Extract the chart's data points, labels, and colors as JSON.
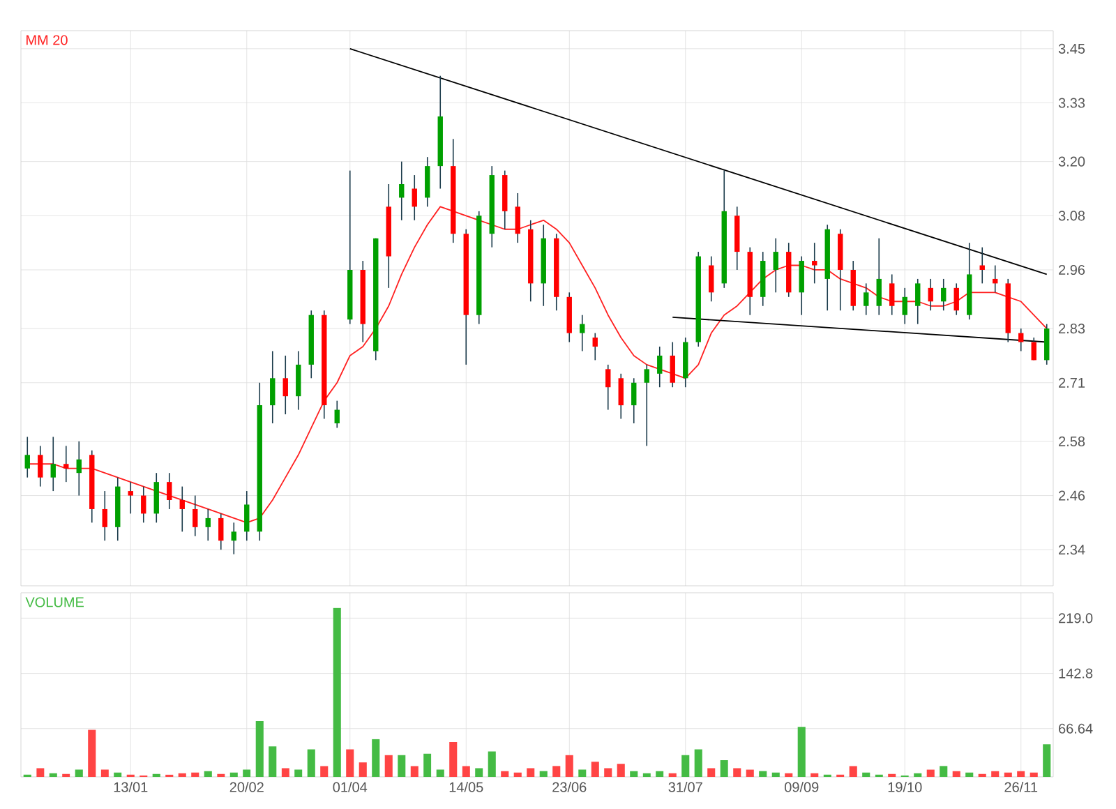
{
  "chart_data": [
    {
      "type": "candlestick",
      "categories": [
        null,
        null,
        null,
        null,
        null,
        null,
        null,
        null,
        null,
        null,
        null,
        null,
        null,
        null,
        null,
        null,
        null,
        null,
        null,
        null,
        null,
        null,
        null,
        null,
        null,
        null,
        null,
        null,
        null,
        null,
        null,
        null,
        null,
        null,
        null,
        null,
        null,
        null,
        null,
        null,
        null,
        null,
        null,
        null,
        null,
        null,
        null,
        null,
        null,
        null,
        null,
        null,
        null,
        null,
        null,
        null,
        null,
        null,
        null,
        null,
        null,
        null,
        null,
        null,
        null,
        null,
        null,
        null,
        null,
        null,
        null,
        null,
        null,
        null,
        null,
        null,
        null,
        null,
        null,
        null
      ],
      "ohlc": [
        [
          2.52,
          2.59,
          2.5,
          2.55
        ],
        [
          2.55,
          2.57,
          2.48,
          2.5
        ],
        [
          2.5,
          2.59,
          2.47,
          2.53
        ],
        [
          2.53,
          2.57,
          2.49,
          2.52
        ],
        [
          2.51,
          2.58,
          2.46,
          2.54
        ],
        [
          2.55,
          2.56,
          2.4,
          2.43
        ],
        [
          2.43,
          2.47,
          2.36,
          2.39
        ],
        [
          2.39,
          2.5,
          2.36,
          2.48
        ],
        [
          2.47,
          2.49,
          2.42,
          2.46
        ],
        [
          2.46,
          2.48,
          2.4,
          2.42
        ],
        [
          2.42,
          2.51,
          2.4,
          2.49
        ],
        [
          2.49,
          2.51,
          2.43,
          2.45
        ],
        [
          2.45,
          2.48,
          2.38,
          2.43
        ],
        [
          2.43,
          2.46,
          2.37,
          2.39
        ],
        [
          2.39,
          2.43,
          2.36,
          2.41
        ],
        [
          2.41,
          2.42,
          2.34,
          2.36
        ],
        [
          2.36,
          2.4,
          2.33,
          2.38
        ],
        [
          2.38,
          2.47,
          2.36,
          2.44
        ],
        [
          2.38,
          2.71,
          2.36,
          2.66
        ],
        [
          2.66,
          2.78,
          2.62,
          2.72
        ],
        [
          2.72,
          2.77,
          2.64,
          2.68
        ],
        [
          2.68,
          2.78,
          2.65,
          2.75
        ],
        [
          2.75,
          2.87,
          2.72,
          2.86
        ],
        [
          2.86,
          2.87,
          2.63,
          2.66
        ],
        [
          2.62,
          2.67,
          2.61,
          2.65
        ],
        [
          2.85,
          3.18,
          2.84,
          2.96
        ],
        [
          2.96,
          2.98,
          2.8,
          2.84
        ],
        [
          2.78,
          3.03,
          2.76,
          3.03
        ],
        [
          3.1,
          3.15,
          2.92,
          2.99
        ],
        [
          3.12,
          3.2,
          3.07,
          3.15
        ],
        [
          3.14,
          3.17,
          3.07,
          3.1
        ],
        [
          3.12,
          3.21,
          3.1,
          3.19
        ],
        [
          3.19,
          3.39,
          3.14,
          3.3
        ],
        [
          3.19,
          3.25,
          3.02,
          3.04
        ],
        [
          3.04,
          3.05,
          2.75,
          2.86
        ],
        [
          2.86,
          3.09,
          2.84,
          3.08
        ],
        [
          3.04,
          3.19,
          3.01,
          3.17
        ],
        [
          3.17,
          3.18,
          3.05,
          3.09
        ],
        [
          3.1,
          3.13,
          3.02,
          3.04
        ],
        [
          3.05,
          3.07,
          2.89,
          2.93
        ],
        [
          2.93,
          3.06,
          2.88,
          3.03
        ],
        [
          3.03,
          3.04,
          2.87,
          2.9
        ],
        [
          2.9,
          2.91,
          2.8,
          2.82
        ],
        [
          2.82,
          2.86,
          2.78,
          2.84
        ],
        [
          2.81,
          2.82,
          2.76,
          2.79
        ],
        [
          2.74,
          2.75,
          2.65,
          2.7
        ],
        [
          2.72,
          2.73,
          2.63,
          2.66
        ],
        [
          2.66,
          2.72,
          2.62,
          2.71
        ],
        [
          2.71,
          2.75,
          2.57,
          2.74
        ],
        [
          2.73,
          2.79,
          2.7,
          2.77
        ],
        [
          2.77,
          2.8,
          2.7,
          2.71
        ],
        [
          2.72,
          2.81,
          2.7,
          2.8
        ],
        [
          2.8,
          3.0,
          2.79,
          2.99
        ],
        [
          2.97,
          2.99,
          2.89,
          2.91
        ],
        [
          2.93,
          3.18,
          2.92,
          3.09
        ],
        [
          3.08,
          3.1,
          2.96,
          3.0
        ],
        [
          3.0,
          3.01,
          2.86,
          2.9
        ],
        [
          2.9,
          3.0,
          2.88,
          2.98
        ],
        [
          2.96,
          3.03,
          2.91,
          3.0
        ],
        [
          3.0,
          3.02,
          2.9,
          2.91
        ],
        [
          2.91,
          2.99,
          2.86,
          2.98
        ],
        [
          2.98,
          3.02,
          2.93,
          2.97
        ],
        [
          2.94,
          3.06,
          2.87,
          3.05
        ],
        [
          3.04,
          3.05,
          2.87,
          2.96
        ],
        [
          2.96,
          2.98,
          2.87,
          2.88
        ],
        [
          2.88,
          2.93,
          2.86,
          2.91
        ],
        [
          2.88,
          3.03,
          2.86,
          2.94
        ],
        [
          2.93,
          2.95,
          2.86,
          2.88
        ],
        [
          2.86,
          2.92,
          2.84,
          2.9
        ],
        [
          2.88,
          2.94,
          2.84,
          2.93
        ],
        [
          2.92,
          2.94,
          2.87,
          2.89
        ],
        [
          2.89,
          2.94,
          2.87,
          2.92
        ],
        [
          2.92,
          2.93,
          2.86,
          2.87
        ],
        [
          2.86,
          3.02,
          2.85,
          2.95
        ],
        [
          2.97,
          3.01,
          2.93,
          2.96
        ],
        [
          2.94,
          2.97,
          2.91,
          2.93
        ],
        [
          2.93,
          2.94,
          2.8,
          2.82
        ],
        [
          2.82,
          2.83,
          2.78,
          2.8
        ],
        [
          2.8,
          2.81,
          2.76,
          2.76
        ],
        [
          2.76,
          2.84,
          2.75,
          2.83
        ]
      ],
      "colors": [
        "#00a000",
        "#ff0000",
        "#00a000",
        "#ff0000",
        "#00a000",
        "#ff0000",
        "#ff0000",
        "#00a000",
        "#ff0000",
        "#ff0000",
        "#00a000",
        "#ff0000",
        "#ff0000",
        "#ff0000",
        "#00a000",
        "#ff0000",
        "#00a000",
        "#00a000",
        "#00a000",
        "#00a000",
        "#ff0000",
        "#00a000",
        "#00a000",
        "#ff0000",
        "#00a000",
        "#00a000",
        "#ff0000",
        "#00a000",
        "#ff0000",
        "#00a000",
        "#ff0000",
        "#00a000",
        "#00a000",
        "#ff0000",
        "#ff0000",
        "#00a000",
        "#00a000",
        "#ff0000",
        "#ff0000",
        "#ff0000",
        "#00a000",
        "#ff0000",
        "#ff0000",
        "#00a000",
        "#ff0000",
        "#ff0000",
        "#ff0000",
        "#00a000",
        "#00a000",
        "#00a000",
        "#ff0000",
        "#00a000",
        "#00a000",
        "#ff0000",
        "#00a000",
        "#ff0000",
        "#ff0000",
        "#00a000",
        "#00a000",
        "#ff0000",
        "#00a000",
        "#ff0000",
        "#00a000",
        "#ff0000",
        "#ff0000",
        "#00a000",
        "#00a000",
        "#ff0000",
        "#00a000",
        "#00a000",
        "#ff0000",
        "#00a000",
        "#ff0000",
        "#00a000",
        "#ff0000",
        "#ff0000",
        "#ff0000",
        "#ff0000",
        "#ff0000",
        "#00a000"
      ],
      "series": [
        {
          "name": "MM 20",
          "type": "line",
          "color": "#ff2020",
          "values": [
            2.53,
            2.53,
            2.53,
            2.52,
            2.52,
            2.52,
            2.51,
            2.5,
            2.49,
            2.48,
            2.47,
            2.46,
            2.45,
            2.44,
            2.43,
            2.42,
            2.41,
            2.4,
            2.41,
            2.45,
            2.5,
            2.55,
            2.61,
            2.67,
            2.71,
            2.77,
            2.79,
            2.83,
            2.88,
            2.95,
            3.01,
            3.06,
            3.1,
            3.09,
            3.08,
            3.07,
            3.06,
            3.05,
            3.05,
            3.06,
            3.07,
            3.05,
            3.02,
            2.97,
            2.92,
            2.86,
            2.81,
            2.77,
            2.75,
            2.74,
            2.73,
            2.72,
            2.75,
            2.82,
            2.86,
            2.88,
            2.91,
            2.94,
            2.96,
            2.97,
            2.97,
            2.96,
            2.96,
            2.94,
            2.93,
            2.92,
            2.9,
            2.89,
            2.89,
            2.89,
            2.88,
            2.88,
            2.89,
            2.91,
            2.91,
            2.91,
            2.9,
            2.89,
            2.86,
            2.83
          ]
        },
        {
          "type": "line",
          "color": "#000000",
          "values": [
            null,
            null,
            null,
            null,
            null,
            null,
            null,
            null,
            null,
            null,
            null,
            null,
            null,
            null,
            null,
            null,
            null,
            null,
            null,
            null,
            null,
            null,
            null,
            null,
            null,
            3.45,
            null,
            null,
            null,
            null,
            null,
            null,
            null,
            null,
            null,
            null,
            null,
            null,
            null,
            null,
            null,
            null,
            null,
            null,
            null,
            null,
            null,
            null,
            null,
            null,
            null,
            null,
            null,
            null,
            null,
            null,
            null,
            null,
            null,
            null,
            null,
            null,
            null,
            null,
            null,
            null,
            null,
            null,
            null,
            null,
            null,
            null,
            null,
            null,
            null,
            null,
            null,
            null,
            null,
            2.95
          ]
        },
        {
          "type": "line",
          "color": "#000000",
          "values": [
            null,
            null,
            null,
            null,
            null,
            null,
            null,
            null,
            null,
            null,
            null,
            null,
            null,
            null,
            null,
            null,
            null,
            null,
            null,
            null,
            null,
            null,
            null,
            null,
            null,
            null,
            null,
            null,
            null,
            null,
            null,
            null,
            null,
            null,
            null,
            null,
            null,
            null,
            null,
            null,
            null,
            null,
            null,
            null,
            null,
            null,
            null,
            null,
            null,
            null,
            2.855,
            null,
            null,
            null,
            null,
            null,
            null,
            null,
            null,
            null,
            null,
            null,
            null,
            null,
            null,
            null,
            null,
            null,
            null,
            null,
            null,
            null,
            null,
            null,
            null,
            null,
            null,
            null,
            null,
            2.8
          ]
        }
      ],
      "ylim": [
        2.26,
        3.49
      ],
      "yticks": [
        2.34,
        2.46,
        2.58,
        2.71,
        2.83,
        2.96,
        3.08,
        {
          "value": 3.2,
          "label": "3.20"
        },
        3.33,
        3.45
      ],
      "grid": true,
      "legend": "top left",
      "tick_labels": "y"
    },
    {
      "type": "bar",
      "title": "VOLUME",
      "categories": [
        null,
        null,
        null,
        null,
        null,
        null,
        null,
        null,
        "13/01",
        null,
        null,
        null,
        null,
        null,
        null,
        null,
        null,
        "20/02",
        null,
        null,
        null,
        null,
        null,
        null,
        null,
        "01/04",
        null,
        null,
        null,
        null,
        null,
        null,
        null,
        null,
        "14/05",
        null,
        null,
        null,
        null,
        null,
        null,
        null,
        "23/06",
        null,
        null,
        null,
        null,
        null,
        null,
        null,
        null,
        "31/07",
        null,
        null,
        null,
        null,
        null,
        null,
        null,
        null,
        "09/09",
        null,
        null,
        null,
        null,
        null,
        null,
        null,
        "19/10",
        null,
        null,
        null,
        null,
        null,
        null,
        null,
        null,
        "26/11",
        null,
        null
      ],
      "values": [
        3,
        12,
        5,
        4,
        10,
        65,
        10,
        6,
        3,
        2,
        4,
        3,
        5,
        6,
        8,
        4,
        6,
        10,
        77,
        42,
        12,
        10,
        38,
        15,
        233,
        38,
        20,
        52,
        30,
        30,
        15,
        32,
        10,
        48,
        15,
        12,
        35,
        8,
        6,
        12,
        8,
        15,
        30,
        10,
        21,
        12,
        18,
        8,
        5,
        8,
        5,
        30,
        38,
        12,
        23,
        12,
        10,
        8,
        6,
        5,
        69,
        5,
        3,
        3,
        15,
        6,
        3,
        4,
        2,
        5,
        10,
        15,
        8,
        6,
        4,
        8,
        6,
        8,
        6,
        45
      ],
      "colors": [
        "#44bb44",
        "#ff4444",
        "#44bb44",
        "#ff4444",
        "#44bb44",
        "#ff4444",
        "#ff4444",
        "#44bb44",
        "#ff4444",
        "#ff4444",
        "#44bb44",
        "#ff4444",
        "#ff4444",
        "#ff4444",
        "#44bb44",
        "#ff4444",
        "#44bb44",
        "#44bb44",
        "#44bb44",
        "#44bb44",
        "#ff4444",
        "#44bb44",
        "#44bb44",
        "#ff4444",
        "#44bb44",
        "#ff4444",
        "#ff4444",
        "#44bb44",
        "#ff4444",
        "#44bb44",
        "#ff4444",
        "#44bb44",
        "#44bb44",
        "#ff4444",
        "#ff4444",
        "#44bb44",
        "#44bb44",
        "#ff4444",
        "#ff4444",
        "#ff4444",
        "#44bb44",
        "#ff4444",
        "#ff4444",
        "#44bb44",
        "#ff4444",
        "#ff4444",
        "#ff4444",
        "#44bb44",
        "#44bb44",
        "#44bb44",
        "#ff4444",
        "#44bb44",
        "#44bb44",
        "#ff4444",
        "#44bb44",
        "#ff4444",
        "#ff4444",
        "#44bb44",
        "#44bb44",
        "#ff4444",
        "#44bb44",
        "#ff4444",
        "#44bb44",
        "#ff4444",
        "#ff4444",
        "#44bb44",
        "#44bb44",
        "#ff4444",
        "#44bb44",
        "#44bb44",
        "#ff4444",
        "#44bb44",
        "#ff4444",
        "#44bb44",
        "#ff4444",
        "#ff4444",
        "#ff4444",
        "#ff4444",
        "#ff4444",
        "#44bb44"
      ],
      "ylim": [
        0,
        254
      ],
      "yticks": [
        66.64,
        142.8,
        {
          "value": 219,
          "label": "219.0"
        }
      ],
      "grid": true
    }
  ]
}
